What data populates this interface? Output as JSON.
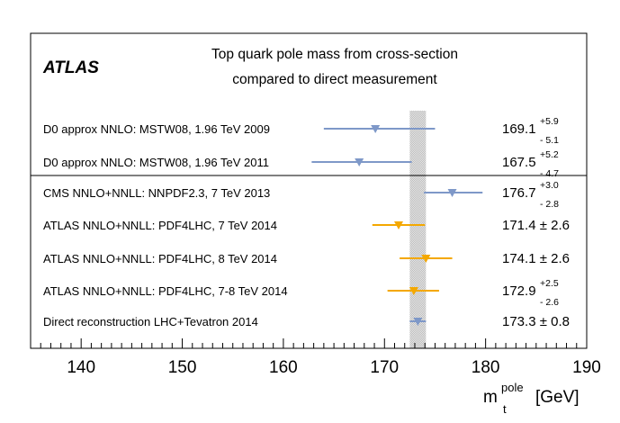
{
  "chart_data": {
    "type": "scatter",
    "orientation": "horizontal-error-bars",
    "experiment": "ATLAS",
    "title_lines": [
      "Top quark pole mass from cross-section",
      "compared to direct measurement"
    ],
    "xlim": [
      135,
      190
    ],
    "xticks": [
      140,
      150,
      160,
      170,
      180,
      190
    ],
    "xticklabels": [
      "140",
      "150",
      "160",
      "170",
      "180",
      "190"
    ],
    "xlabel": {
      "symbol": "m",
      "superscript": "pole",
      "subscript": "t",
      "unit": "[GeV]"
    },
    "reference_band": {
      "label": "Direct reconstruction LHC+Tevatron 2014",
      "low": 172.5,
      "high": 174.1
    },
    "series_colors": {
      "blue": "#7e98c8",
      "orange": "#f4a800"
    },
    "measurements": [
      {
        "label": "D0 approx NNLO: MSTW08, 1.96 TeV 2009",
        "value": 169.1,
        "value_text": "169.1",
        "err_plus": 5.9,
        "err_minus": 5.1,
        "plus_text": "+5.9",
        "minus_text": "- 5.1",
        "color": "blue",
        "symmetric": false
      },
      {
        "label": "D0 approx NNLO: MSTW08, 1.96 TeV 2011",
        "value": 167.5,
        "value_text": "167.5",
        "err_plus": 5.2,
        "err_minus": 4.7,
        "plus_text": "+5.2",
        "minus_text": "- 4.7",
        "color": "blue",
        "symmetric": false
      },
      {
        "label": "CMS NNLO+NNLL: NNPDF2.3, 7 TeV 2013",
        "value": 176.7,
        "value_text": "176.7",
        "err_plus": 3.0,
        "err_minus": 2.8,
        "plus_text": "+3.0",
        "minus_text": "- 2.8",
        "color": "blue",
        "symmetric": false
      },
      {
        "label": "ATLAS NNLO+NNLL: PDF4LHC, 7 TeV 2014",
        "value": 171.4,
        "value_text": "171.4  ±  2.6",
        "err_plus": 2.6,
        "err_minus": 2.6,
        "color": "orange",
        "symmetric": true
      },
      {
        "label": "ATLAS NNLO+NNLL: PDF4LHC, 8 TeV 2014",
        "value": 174.1,
        "value_text": "174.1  ±  2.6",
        "err_plus": 2.6,
        "err_minus": 2.6,
        "color": "orange",
        "symmetric": true
      },
      {
        "label": "ATLAS NNLO+NNLL: PDF4LHC, 7-8 TeV 2014",
        "value": 172.9,
        "value_text": "172.9",
        "err_plus": 2.5,
        "err_minus": 2.6,
        "plus_text": "+2.5",
        "minus_text": "- 2.6",
        "color": "orange",
        "symmetric": false
      },
      {
        "label": "Direct reconstruction LHC+Tevatron 2014",
        "value": 173.3,
        "value_text": "173.3  ±  0.8",
        "err_plus": 0.8,
        "err_minus": 0.8,
        "color": "blue",
        "symmetric": true
      }
    ]
  }
}
